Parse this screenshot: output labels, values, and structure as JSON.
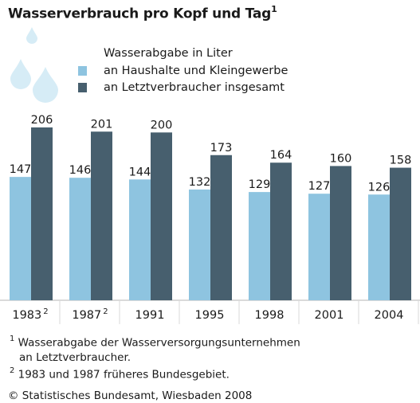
{
  "title": "Wasserverbrauch pro Kopf und Tag",
  "title_sup": "1",
  "legend": {
    "heading": "Wasserabgabe in Liter",
    "items": [
      {
        "label": "an Haushalte und Kleingewerbe",
        "color": "#8ec4e0"
      },
      {
        "label": "an Letztverbraucher insgesamt",
        "color": "#475f6e"
      }
    ]
  },
  "chart_data": {
    "type": "bar",
    "categories": [
      "1983",
      "1987",
      "1991",
      "1995",
      "1998",
      "2001",
      "2004"
    ],
    "category_sups": [
      "2",
      "2",
      "",
      "",
      "",
      "",
      ""
    ],
    "series": [
      {
        "name": "an Haushalte und Kleingewerbe",
        "values": [
          147,
          146,
          144,
          132,
          129,
          127,
          126
        ],
        "color": "#8ec4e0"
      },
      {
        "name": "an Letztverbraucher insgesamt",
        "values": [
          206,
          201,
          200,
          173,
          164,
          160,
          158
        ],
        "color": "#475f6e"
      }
    ],
    "ylim": [
      0,
      206
    ]
  },
  "footnotes": [
    {
      "mark": "1",
      "lines": [
        "Wasserabgabe der Wasserversorgungsunternehmen",
        "an Letztverbraucher."
      ]
    },
    {
      "mark": "2",
      "lines": [
        "1983 und 1987 früheres Bundesgebiet."
      ]
    }
  ],
  "copyright": "© Statistisches Bundesamt, Wiesbaden 2008",
  "decoration": {
    "drop_color": "#d6ecf6",
    "grid_color": "#d9d9d9"
  }
}
